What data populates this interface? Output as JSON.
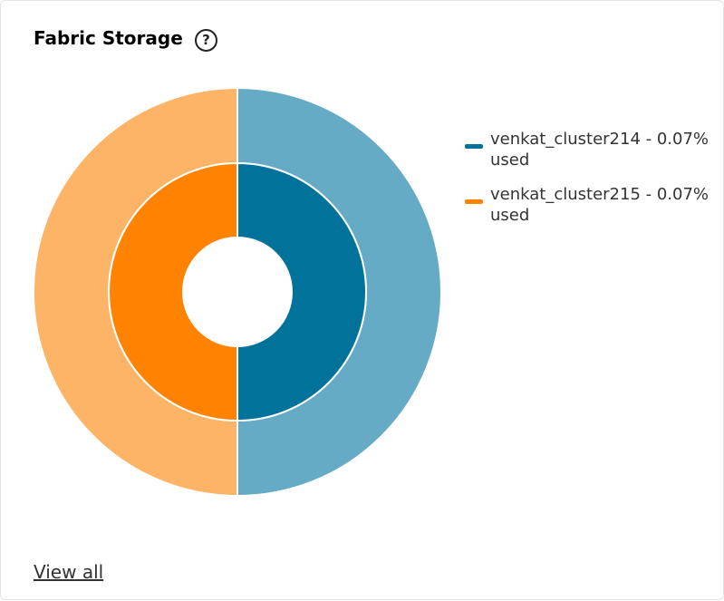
{
  "header": {
    "title": "Fabric Storage"
  },
  "chart_data": {
    "type": "pie",
    "categories": [
      "venkat_cluster214 - 0.07% used",
      "venkat_cluster215 - 0.07% used"
    ],
    "values": [
      0.07,
      0.07
    ],
    "colors": [
      "#01739a",
      "#ff8300"
    ],
    "outer_colors": [
      "#66abc6",
      "#feb466"
    ]
  },
  "footer": {
    "link": "View all"
  }
}
